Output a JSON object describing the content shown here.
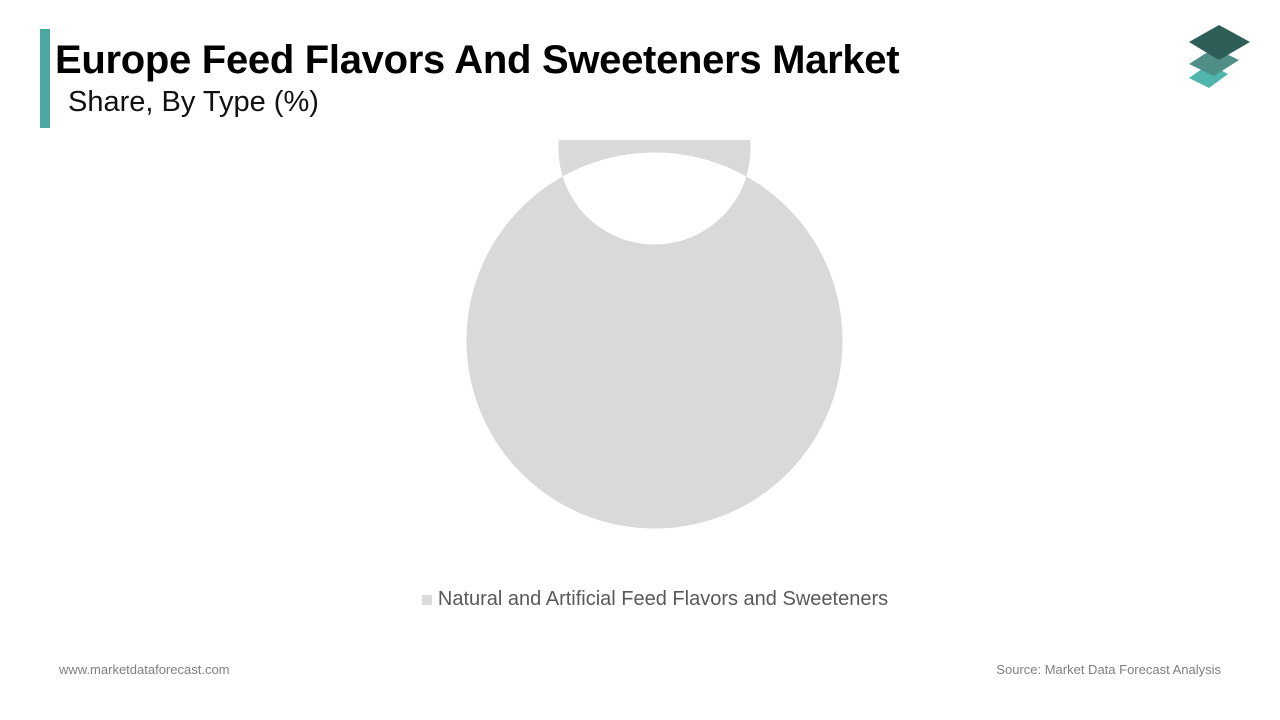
{
  "header": {
    "title": "Europe Feed Flavors And Sweeteners Market",
    "subtitle": "Share, By Type (%)"
  },
  "colors": {
    "accent": "#4aa8a2",
    "slice": "#d9d9d9",
    "logo_dark": "#2e5e58",
    "logo_mid": "#4f8f88",
    "logo_light": "#4fb5ad"
  },
  "logo": {
    "icon": "stacked-layers-icon"
  },
  "chart_data": {
    "type": "pie",
    "variant": "donut",
    "categories": [
      "Natural and Artificial Feed Flavors and Sweeteners"
    ],
    "values": [
      100
    ],
    "colors": [
      "#d9d9d9"
    ],
    "legend_position": "bottom",
    "data_labels": false
  },
  "footer": {
    "website": "www.marketdataforecast.com",
    "source": "Source: Market Data Forecast Analysis"
  }
}
